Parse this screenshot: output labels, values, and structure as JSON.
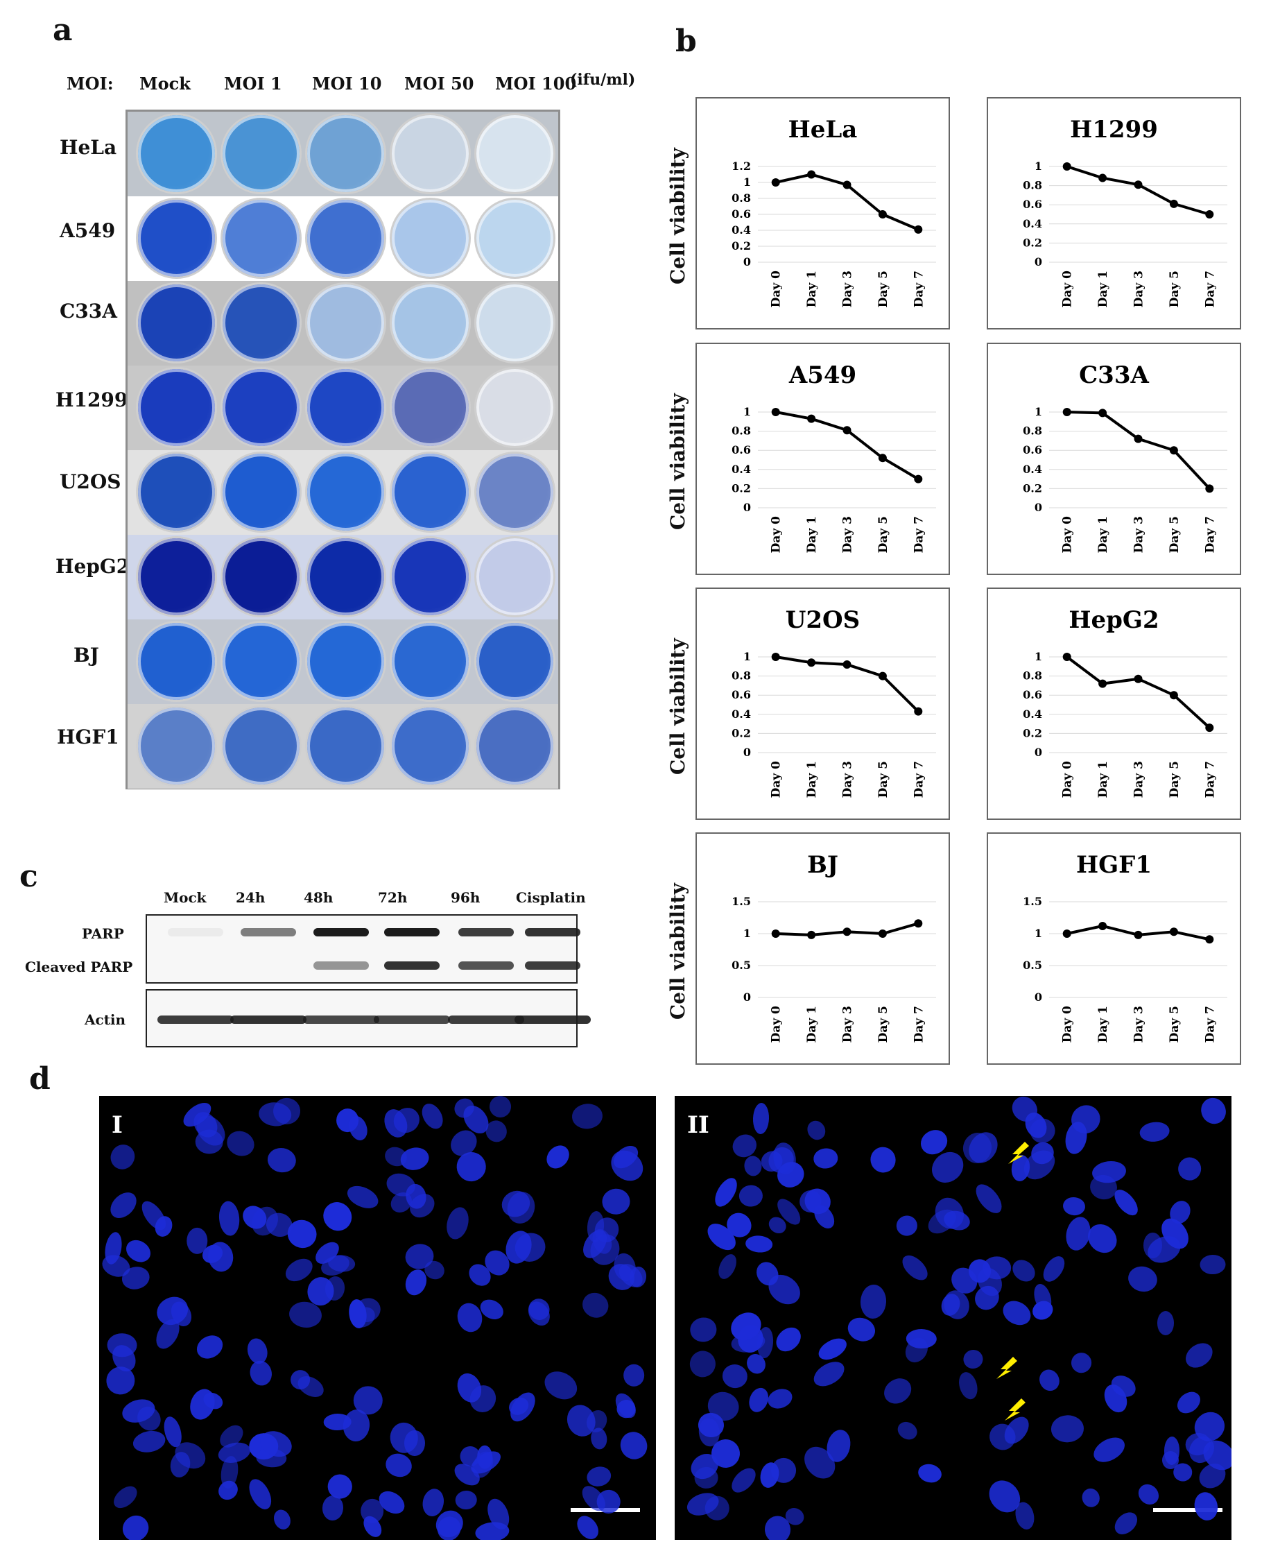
{
  "panel_a": {
    "letter": "a",
    "moi_title": "MOI:",
    "moi_columns": [
      "Mock",
      "MOI 1",
      "MOI 10",
      "MOI 50",
      "MOI 100"
    ],
    "units": "(ifu/ml)",
    "rows": [
      "HeLa",
      "A549",
      "C33A",
      "H1299",
      "U2OS",
      "HepG2",
      "BJ",
      "HGF1"
    ],
    "well_colors": [
      [
        "#3f8fd6",
        "#4a93d4",
        "#6fa2d4",
        "#c9d5e3",
        "#d7e3ee"
      ],
      [
        "#1f4fc8",
        "#4f7ed6",
        "#3f6fd0",
        "#a9c6ea",
        "#bcd6ee"
      ],
      [
        "#1b43b6",
        "#2653b8",
        "#9fbbe0",
        "#a5c4e6",
        "#cddceb"
      ],
      [
        "#1a3cbd",
        "#1c40c0",
        "#1e47c4",
        "#5a6bb5",
        "#d9dde6"
      ],
      [
        "#1e4fba",
        "#1e5cd0",
        "#2568d6",
        "#2a62d0",
        "#6b84c6"
      ],
      [
        "#0d1f9a",
        "#0b1d96",
        "#0d2ba8",
        "#1836b8",
        "#c2cbe8"
      ],
      [
        "#2060d0",
        "#2466d6",
        "#2468d6",
        "#2a68d2",
        "#2a5fc8"
      ],
      [
        "#5a7fc8",
        "#3f6cc4",
        "#3a69c6",
        "#3d6cca",
        "#4a6ec2"
      ]
    ]
  },
  "panel_b": {
    "letter": "b",
    "y_axis_label": "Cell viability"
  },
  "chart_data": [
    {
      "type": "line",
      "title": "HeLa",
      "categories": [
        "Day 0",
        "Day 1",
        "Day 3",
        "Day 5",
        "Day 7"
      ],
      "values": [
        1.0,
        1.1,
        0.97,
        0.6,
        0.41
      ],
      "ylim": [
        0,
        1.2
      ],
      "yticks": [
        "0",
        "0.2",
        "0.4",
        "0.6",
        "0.8",
        "1",
        "1.2"
      ],
      "ylabel": "Cell viability"
    },
    {
      "type": "line",
      "title": "H1299",
      "categories": [
        "Day 0",
        "Day 1",
        "Day 3",
        "Day 5",
        "Day 7"
      ],
      "values": [
        1.0,
        0.88,
        0.81,
        0.61,
        0.5
      ],
      "ylim": [
        0,
        1
      ],
      "yticks": [
        "0",
        "0.2",
        "0.4",
        "0.6",
        "0.8",
        "1"
      ],
      "ylabel": ""
    },
    {
      "type": "line",
      "title": "A549",
      "categories": [
        "Day 0",
        "Day 1",
        "Day 3",
        "Day 5",
        "Day 7"
      ],
      "values": [
        1.0,
        0.93,
        0.81,
        0.52,
        0.3
      ],
      "ylim": [
        0,
        1
      ],
      "yticks": [
        "0",
        "0.2",
        "0.4",
        "0.6",
        "0.8",
        "1"
      ],
      "ylabel": "Cell viability"
    },
    {
      "type": "line",
      "title": "C33A",
      "categories": [
        "Day 0",
        "Day 1",
        "Day 3",
        "Day 5",
        "Day 7"
      ],
      "values": [
        1.0,
        0.99,
        0.72,
        0.6,
        0.2
      ],
      "ylim": [
        0,
        1
      ],
      "yticks": [
        "0",
        "0.2",
        "0.4",
        "0.6",
        "0.8",
        "1"
      ],
      "ylabel": ""
    },
    {
      "type": "line",
      "title": "U2OS",
      "categories": [
        "Day 0",
        "Day 1",
        "Day 3",
        "Day 5",
        "Day 7"
      ],
      "values": [
        1.0,
        0.94,
        0.92,
        0.8,
        0.43
      ],
      "ylim": [
        0,
        1
      ],
      "yticks": [
        "0",
        "0.2",
        "0.4",
        "0.6",
        "0.8",
        "1"
      ],
      "ylabel": "Cell viability"
    },
    {
      "type": "line",
      "title": "HepG2",
      "categories": [
        "Day 0",
        "Day 1",
        "Day 3",
        "Day 5",
        "Day 7"
      ],
      "values": [
        1.0,
        0.72,
        0.77,
        0.6,
        0.26
      ],
      "ylim": [
        0,
        1
      ],
      "yticks": [
        "0",
        "0.2",
        "0.4",
        "0.6",
        "0.8",
        "1"
      ],
      "ylabel": ""
    },
    {
      "type": "line",
      "title": "BJ",
      "categories": [
        "Day 0",
        "Day 1",
        "Day 3",
        "Day 5",
        "Day 7"
      ],
      "values": [
        1.0,
        0.98,
        1.03,
        1.0,
        1.16
      ],
      "ylim": [
        0,
        1.5
      ],
      "yticks": [
        "0",
        "0.5",
        "1",
        "1.5"
      ],
      "ylabel": "Cell viability"
    },
    {
      "type": "line",
      "title": "HGF1",
      "categories": [
        "Day 0",
        "Day 1",
        "Day 3",
        "Day 5",
        "Day 7"
      ],
      "values": [
        1.0,
        1.12,
        0.98,
        1.03,
        0.91
      ],
      "ylim": [
        0,
        1.5
      ],
      "yticks": [
        "0",
        "0.5",
        "1",
        "1.5"
      ],
      "ylabel": ""
    }
  ],
  "panel_c": {
    "letter": "c",
    "lanes": [
      "Mock",
      "24h",
      "48h",
      "72h",
      "96h",
      "Cisplatin"
    ],
    "labels": {
      "parp": "PARP",
      "cleaved": "Cleaved PARP",
      "actin": "Actin"
    },
    "parp_intensity": [
      0.05,
      0.55,
      1.0,
      1.0,
      0.85,
      0.9
    ],
    "cleaved_intensity": [
      0,
      0,
      0.45,
      0.9,
      0.75,
      0.85
    ],
    "actin_intensity": [
      0.85,
      0.9,
      0.8,
      0.8,
      0.85,
      0.9
    ]
  },
  "panel_d": {
    "letter": "d",
    "image_labels": [
      "I",
      "II"
    ],
    "nucleus_color": "#1d2cd8",
    "arrow_color": "#ffee00"
  }
}
